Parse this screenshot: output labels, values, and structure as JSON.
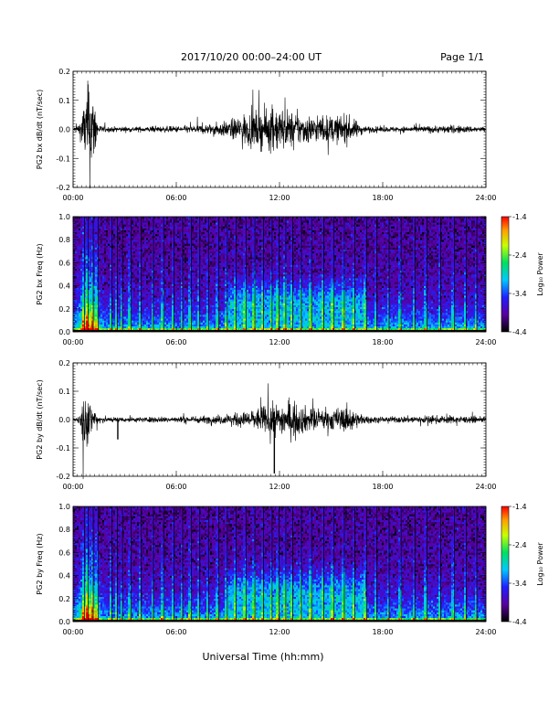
{
  "header": {
    "title": "2017/10/20  00:00–24:00 UT",
    "page": "Page 1/1"
  },
  "xaxis_label": "Universal Time (hh:mm)",
  "chart_data": [
    {
      "type": "line",
      "ylabel": "PG2 bx dB/dt (nT/sec)",
      "ylim": [
        -0.2,
        0.2
      ],
      "yticks": [
        0.2,
        0.1,
        0.0,
        -0.1,
        -0.2
      ],
      "ytick_labels": [
        "0.2",
        "0.1",
        "0.0",
        "-0.1",
        "-0.2"
      ],
      "xlim": [
        0,
        24
      ],
      "xticks": [
        0,
        6,
        12,
        18,
        24
      ],
      "xtick_labels": [
        "00:00",
        "06:00",
        "12:00",
        "18:00",
        "24:00"
      ],
      "envelope": {
        "hours": [
          0,
          0.4,
          0.8,
          1.0,
          1.5,
          2,
          4,
          6,
          7,
          8,
          9,
          10,
          11,
          11.5,
          12,
          12.5,
          13,
          14,
          15,
          16,
          16.5,
          17,
          18,
          20,
          22,
          24
        ],
        "amplitude": [
          0.005,
          0.03,
          0.15,
          0.2,
          0.015,
          0.01,
          0.01,
          0.012,
          0.015,
          0.02,
          0.03,
          0.06,
          0.07,
          0.08,
          0.085,
          0.07,
          0.06,
          0.05,
          0.05,
          0.05,
          0.03,
          0.012,
          0.01,
          0.012,
          0.015,
          0.01
        ]
      }
    },
    {
      "type": "heatmap",
      "ylabel": "PG2 bx Freq (Hz)",
      "ylim": [
        0.0,
        1.0
      ],
      "yticks": [
        1.0,
        0.8,
        0.6,
        0.4,
        0.2,
        0.0
      ],
      "ytick_labels": [
        "1.0",
        "0.8",
        "0.6",
        "0.4",
        "0.2",
        "0.0"
      ],
      "xlim": [
        0,
        24
      ],
      "xticks": [
        0,
        6,
        12,
        18,
        24
      ],
      "xtick_labels": [
        "00:00",
        "06:00",
        "12:00",
        "18:00",
        "24:00"
      ],
      "colorbar": {
        "label": "Log₁₀ Power",
        "range": [
          -4.4,
          -1.4
        ],
        "ticks": [
          -1.4,
          -2.4,
          -3.4,
          -4.4
        ],
        "tick_labels": [
          "-1.4",
          "-2.4",
          "-3.4",
          "-4.4"
        ]
      }
    },
    {
      "type": "line",
      "ylabel": "PG2 by dB/dt (nT/sec)",
      "ylim": [
        -0.2,
        0.2
      ],
      "yticks": [
        0.2,
        0.1,
        0.0,
        -0.1,
        -0.2
      ],
      "ytick_labels": [
        "0.2",
        "0.1",
        "0.0",
        "-0.1",
        "-0.2"
      ],
      "xlim": [
        0,
        24
      ],
      "xticks": [
        0,
        6,
        12,
        18,
        24
      ],
      "xtick_labels": [
        "00:00",
        "06:00",
        "12:00",
        "18:00",
        "24:00"
      ],
      "envelope": {
        "hours": [
          0,
          0.4,
          0.6,
          0.9,
          1.5,
          2,
          4,
          6,
          8,
          9,
          10,
          11,
          11.5,
          12,
          12.5,
          13,
          14,
          15,
          16,
          16.5,
          17,
          18,
          20,
          22,
          24
        ],
        "amplitude": [
          0.005,
          0.02,
          0.12,
          0.08,
          0.02,
          0.01,
          0.01,
          0.012,
          0.015,
          0.02,
          0.03,
          0.05,
          0.06,
          0.06,
          0.07,
          0.06,
          0.04,
          0.04,
          0.05,
          0.03,
          0.015,
          0.01,
          0.015,
          0.015,
          0.01
        ]
      },
      "spikes": [
        {
          "hour": 2.6,
          "value": -0.07
        },
        {
          "hour": 11.7,
          "value": -0.19
        }
      ]
    },
    {
      "type": "heatmap",
      "ylabel": "PG2 by Freq (Hz)",
      "ylim": [
        0.0,
        1.0
      ],
      "yticks": [
        1.0,
        0.8,
        0.6,
        0.4,
        0.2,
        0.0
      ],
      "ytick_labels": [
        "1.0",
        "0.8",
        "0.6",
        "0.4",
        "0.2",
        "0.0"
      ],
      "xlim": [
        0,
        24
      ],
      "xticks": [
        0,
        6,
        12,
        18,
        24
      ],
      "xtick_labels": [
        "00:00",
        "06:00",
        "12:00",
        "18:00",
        "24:00"
      ],
      "colorbar": {
        "label": "Log₁₀ Power",
        "range": [
          -4.4,
          -1.4
        ],
        "ticks": [
          -1.4,
          -2.4,
          -3.4,
          -4.4
        ],
        "tick_labels": [
          "-1.4",
          "-2.4",
          "-3.4",
          "-4.4"
        ]
      }
    }
  ],
  "spectrogram_features": {
    "vertical_streak_hours": [
      0.6,
      0.8,
      1.1,
      1.4,
      2.2,
      2.5,
      2.8,
      3.3,
      3.9,
      4.6,
      5.2,
      5.8,
      6.3,
      6.8,
      7.3,
      7.8,
      8.4,
      8.9,
      9.4,
      10.0,
      10.5,
      11.0,
      11.5,
      11.9,
      12.3,
      12.7,
      13.2,
      13.8,
      14.5,
      15.1,
      15.7,
      16.3,
      17.0,
      17.6,
      18.3,
      19.0,
      19.8,
      20.5,
      21.3,
      22.1,
      22.8,
      23.4
    ],
    "power_band_hours": [
      9,
      17
    ],
    "low_freq_enhancement_hz": [
      0.0,
      0.4
    ]
  }
}
